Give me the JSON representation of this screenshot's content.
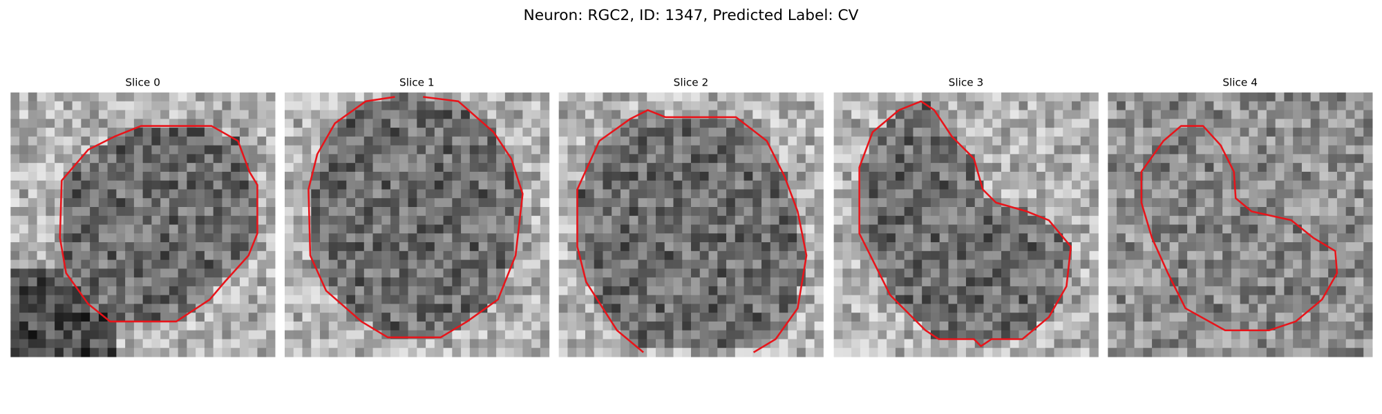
{
  "title": "Neuron: RGC2, ID: 1347, Predicted Label: CV",
  "panels": [
    {
      "title": "Slice 0"
    },
    {
      "title": "Slice 1"
    },
    {
      "title": "Slice 2"
    },
    {
      "title": "Slice 3"
    },
    {
      "title": "Slice 4"
    }
  ]
}
